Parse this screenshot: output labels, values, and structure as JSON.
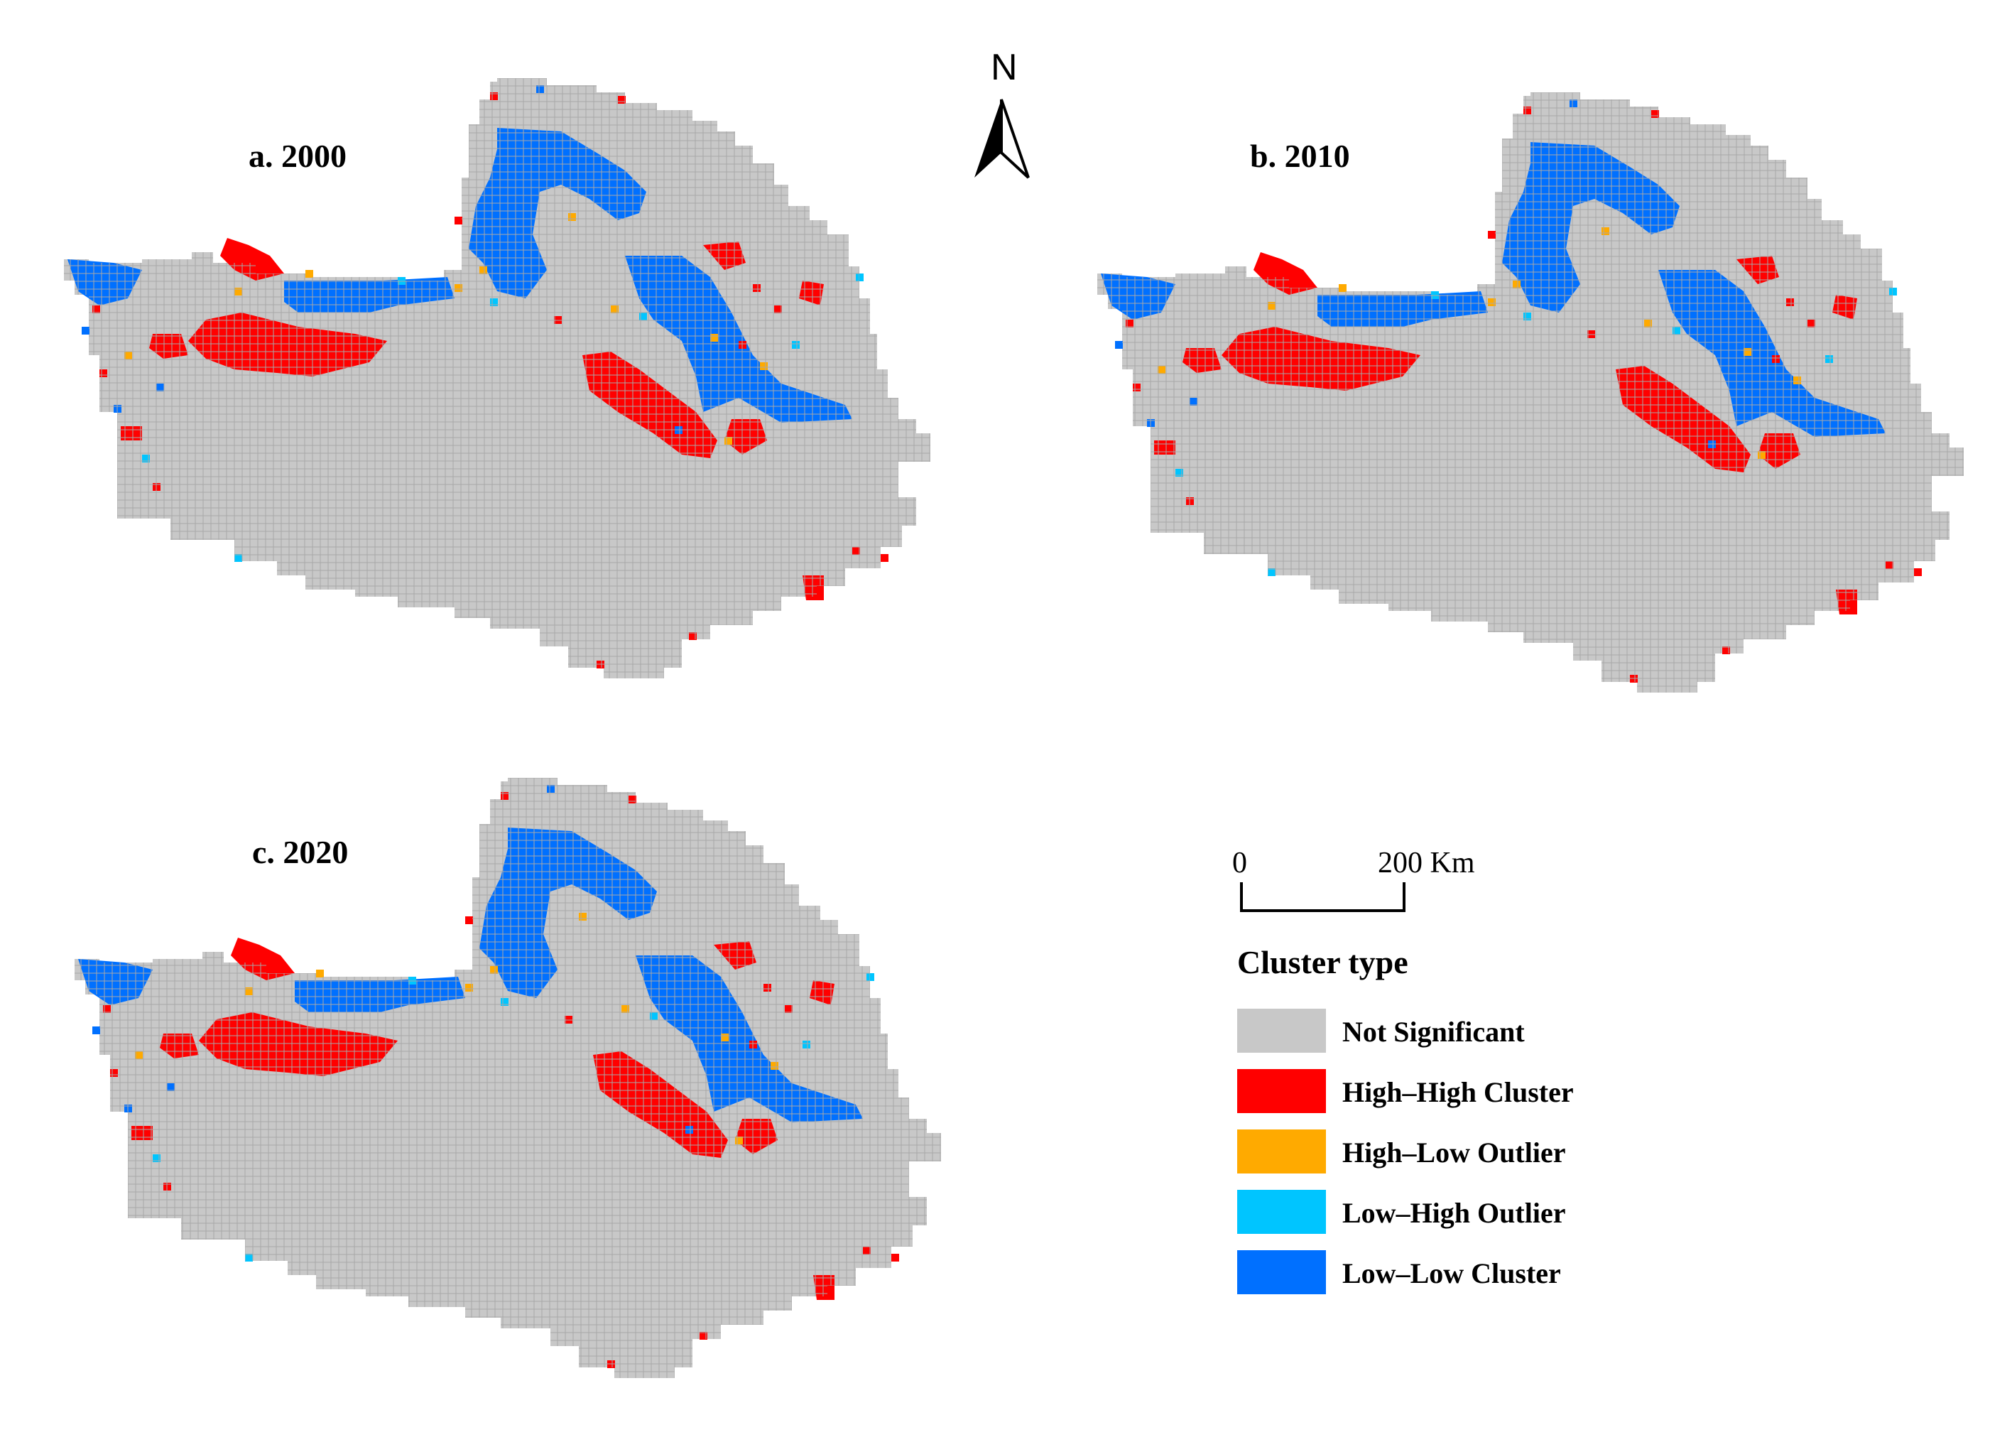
{
  "panels": [
    {
      "id": "a",
      "title": "a. 2000"
    },
    {
      "id": "b",
      "title": "b. 2010"
    },
    {
      "id": "c",
      "title": "c. 2020"
    }
  ],
  "north_arrow": {
    "label": "N"
  },
  "scale_bar": {
    "start_label": "0",
    "end_label": "200 Km"
  },
  "legend": {
    "title": "Cluster type",
    "items": [
      {
        "key": "ns",
        "label": "Not Significant",
        "color": "#c8c8c8"
      },
      {
        "key": "hh",
        "label": "High–High Cluster",
        "color": "#ff0000"
      },
      {
        "key": "hl",
        "label": "High–Low Outlier",
        "color": "#ffaa00"
      },
      {
        "key": "lh",
        "label": "Low–High Outlier",
        "color": "#00c5ff"
      },
      {
        "key": "ll",
        "label": "Low–Low Cluster",
        "color": "#0070ff"
      }
    ]
  },
  "colors": {
    "grid_line": "#a8a8a8",
    "background": "#ffffff"
  }
}
